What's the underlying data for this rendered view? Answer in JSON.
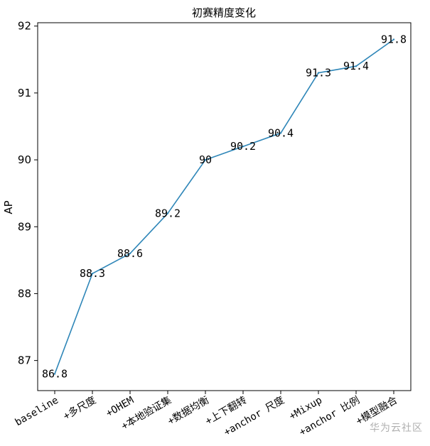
{
  "chart_data": {
    "type": "line",
    "title": "初赛精度变化",
    "xlabel": "",
    "ylabel": "AP",
    "categories": [
      "baseline",
      "+多尺度",
      "+OHEM",
      "+本地验证集",
      "+数据均衡",
      "+上下翻转",
      "+anchor 尺度",
      "+Mixup",
      "+anchor 比例",
      "+模型融合"
    ],
    "values": [
      86.8,
      88.3,
      88.6,
      89.2,
      90.0,
      90.2,
      90.4,
      91.3,
      91.4,
      91.8
    ],
    "data_labels": [
      "86.8",
      "88.3",
      "88.6",
      "89.2",
      "90",
      "90.2",
      "90.4",
      "91.3",
      "91.4",
      "91.8"
    ],
    "ylim": [
      86.55,
      92.05
    ],
    "yticks": [
      87,
      88,
      89,
      90,
      91,
      92
    ],
    "line_color": "#2e86b8",
    "grid": false,
    "legend": "none"
  },
  "watermark": "华为云社区"
}
